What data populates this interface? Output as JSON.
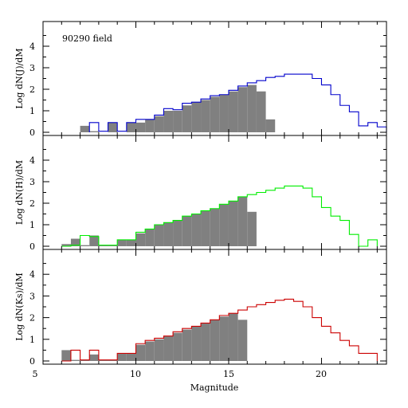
{
  "chart_data": {
    "type": "bar",
    "xlabel": "Magnitude",
    "xlim": [
      5,
      23.5
    ],
    "xticks": [
      5,
      10,
      15,
      20
    ],
    "bin_width": 0.5,
    "annotation": "90290 field",
    "colors": {
      "filled": "#808080",
      "J": "#0000cc",
      "H": "#00ee00",
      "Ks": "#cc0000"
    },
    "panels": [
      {
        "id": "J",
        "ylabel": "Log dN(J)/dM",
        "ylim": [
          0,
          5
        ],
        "yticks": [
          0,
          1,
          2,
          3,
          4
        ],
        "filled": {
          "x": [
            7.0,
            7.5,
            8.5,
            9.5,
            10.0,
            10.5,
            11.0,
            11.5,
            12.0,
            12.5,
            13.0,
            13.5,
            14.0,
            14.5,
            15.0,
            15.5,
            16.0,
            16.5,
            17.0
          ],
          "y": [
            0.3,
            0.05,
            0.45,
            0.45,
            0.45,
            0.6,
            0.75,
            1.0,
            1.0,
            1.25,
            1.4,
            1.5,
            1.65,
            1.75,
            1.9,
            2.1,
            2.2,
            1.9,
            0.6
          ]
        },
        "series": [
          {
            "name": "J",
            "x": [
              7.5,
              8.0,
              8.5,
              9.0,
              9.5,
              10.0,
              10.5,
              11.0,
              11.5,
              12.0,
              12.5,
              13.0,
              13.5,
              14.0,
              14.5,
              15.0,
              15.5,
              16.0,
              16.5,
              17.0,
              17.5,
              18.0,
              18.5,
              19.0,
              19.5,
              20.0,
              20.5,
              21.0,
              21.5,
              22.0,
              22.5,
              23.0
            ],
            "y": [
              0.45,
              0.05,
              0.45,
              0.05,
              0.45,
              0.6,
              0.6,
              0.8,
              1.1,
              1.05,
              1.35,
              1.4,
              1.55,
              1.7,
              1.75,
              1.95,
              2.15,
              2.3,
              2.4,
              2.55,
              2.6,
              2.7,
              2.7,
              2.7,
              2.5,
              2.2,
              1.75,
              1.25,
              0.95,
              0.3,
              0.45,
              0.25
            ]
          }
        ]
      },
      {
        "id": "H",
        "ylabel": "Log dN(H)/dM",
        "ylim": [
          0,
          5
        ],
        "yticks": [
          0,
          1,
          2,
          3,
          4
        ],
        "filled": {
          "x": [
            6.0,
            6.5,
            7.0,
            7.5,
            8.0,
            8.5,
            9.0,
            9.5,
            10.0,
            10.5,
            11.0,
            11.5,
            12.0,
            12.5,
            13.0,
            13.5,
            14.0,
            14.5,
            15.0,
            15.5,
            16.0
          ],
          "y": [
            0.1,
            0.35,
            0.05,
            0.5,
            0.05,
            0.05,
            0.3,
            0.3,
            0.6,
            0.8,
            1.0,
            1.1,
            1.2,
            1.4,
            1.5,
            1.65,
            1.75,
            1.95,
            2.1,
            2.3,
            1.6
          ]
        },
        "series": [
          {
            "name": "H",
            "x": [
              6.0,
              6.5,
              7.0,
              7.5,
              8.0,
              8.5,
              9.0,
              9.5,
              10.0,
              10.5,
              11.0,
              11.5,
              12.0,
              12.5,
              13.0,
              13.5,
              14.0,
              14.5,
              15.0,
              15.5,
              16.0,
              16.5,
              17.0,
              17.5,
              18.0,
              18.5,
              19.0,
              19.5,
              20.0,
              20.5,
              21.0,
              21.5,
              22.0,
              22.5
            ],
            "y": [
              0.0,
              0.05,
              0.5,
              0.45,
              0.05,
              0.05,
              0.3,
              0.3,
              0.65,
              0.8,
              1.0,
              1.1,
              1.2,
              1.4,
              1.5,
              1.65,
              1.75,
              1.95,
              2.1,
              2.3,
              2.4,
              2.5,
              2.6,
              2.7,
              2.8,
              2.8,
              2.7,
              2.3,
              1.8,
              1.4,
              1.2,
              0.55,
              0.0,
              0.3
            ]
          }
        ]
      },
      {
        "id": "Ks",
        "ylabel": "Log dN(Ks)/dM",
        "ylim": [
          0,
          5
        ],
        "yticks": [
          0,
          1,
          2,
          3,
          4
        ],
        "filled": {
          "x": [
            6.0,
            6.5,
            7.0,
            7.5,
            8.0,
            8.5,
            9.0,
            9.5,
            10.0,
            10.5,
            11.0,
            11.5,
            12.0,
            12.5,
            13.0,
            13.5,
            14.0,
            14.5,
            15.0,
            15.5
          ],
          "y": [
            0.5,
            0.05,
            0.05,
            0.3,
            0.05,
            0.05,
            0.35,
            0.35,
            0.75,
            0.9,
            1.0,
            1.15,
            1.3,
            1.45,
            1.6,
            1.75,
            1.9,
            2.05,
            2.2,
            1.9
          ]
        },
        "series": [
          {
            "name": "Ks",
            "x": [
              6.0,
              6.5,
              7.0,
              7.5,
              8.0,
              8.5,
              9.0,
              9.5,
              10.0,
              10.5,
              11.0,
              11.5,
              12.0,
              12.5,
              13.0,
              13.5,
              14.0,
              14.5,
              15.0,
              15.5,
              16.0,
              16.5,
              17.0,
              17.5,
              18.0,
              18.5,
              19.0,
              19.5,
              20.0,
              20.5,
              21.0,
              21.5,
              22.0,
              22.5
            ],
            "y": [
              0.0,
              0.5,
              0.05,
              0.5,
              0.05,
              0.05,
              0.35,
              0.35,
              0.8,
              0.95,
              1.05,
              1.15,
              1.35,
              1.5,
              1.6,
              1.75,
              1.9,
              2.1,
              2.2,
              2.35,
              2.5,
              2.6,
              2.7,
              2.8,
              2.85,
              2.75,
              2.5,
              2.0,
              1.6,
              1.3,
              0.95,
              0.7,
              0.35,
              0.35
            ]
          }
        ]
      }
    ]
  }
}
